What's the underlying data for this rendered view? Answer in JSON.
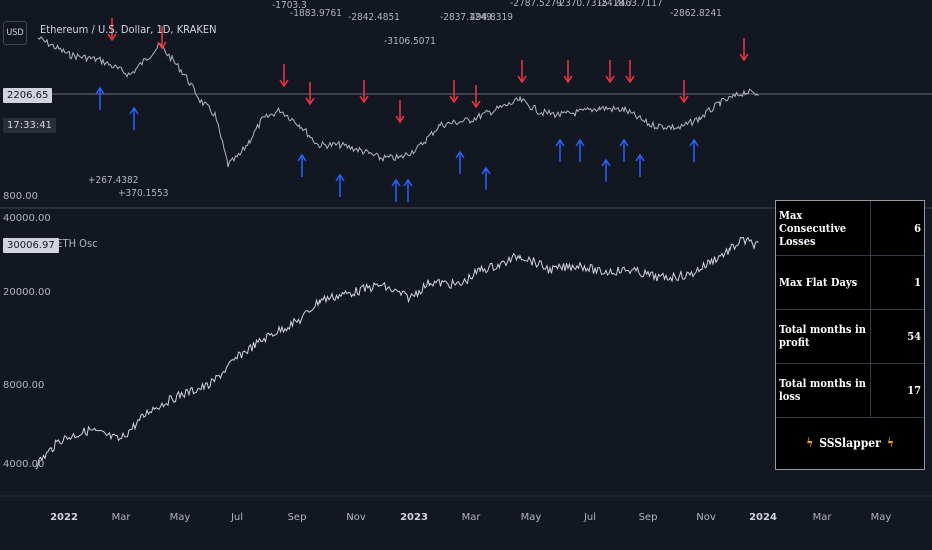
{
  "header": {
    "currency_button": "USD",
    "symbol_title": "Ethereum / U.S. Dollar, 1D, KRAKEN",
    "last_price": "2206.65",
    "countdown": "17:33:41"
  },
  "price_pane": {
    "axis_labels": [
      "800.00"
    ]
  },
  "oscillator": {
    "title": "RS ETH Osc",
    "last_value": "30006.97",
    "axis_labels": [
      "40000.00",
      "20000.00",
      "8000.00",
      "4000.00"
    ]
  },
  "x_axis": {
    "ticks": [
      {
        "label": "2022",
        "bold": true
      },
      {
        "label": "Mar",
        "bold": false
      },
      {
        "label": "May",
        "bold": false
      },
      {
        "label": "Jul",
        "bold": false
      },
      {
        "label": "Sep",
        "bold": false
      },
      {
        "label": "Nov",
        "bold": false
      },
      {
        "label": "2023",
        "bold": true
      },
      {
        "label": "Mar",
        "bold": false
      },
      {
        "label": "May",
        "bold": false
      },
      {
        "label": "Jul",
        "bold": false
      },
      {
        "label": "Sep",
        "bold": false
      },
      {
        "label": "Nov",
        "bold": false
      },
      {
        "label": "2024",
        "bold": true
      },
      {
        "label": "Mar",
        "bold": false
      },
      {
        "label": "May",
        "bold": false
      }
    ]
  },
  "trade_labels": {
    "sell": [
      "-1703.3",
      "-1883.9761",
      "-2842.4851",
      "-3106.5071",
      "-2837.1249",
      "494.8319",
      "-2787.5279",
      "-2370.7315",
      "-2418.7",
      "2463.7117",
      "-2862.8241"
    ],
    "buy": [
      "+267.4382",
      "+370.1553"
    ]
  },
  "stats": {
    "rows": [
      {
        "label": "Max Consecutive Losses",
        "value": "6"
      },
      {
        "label": "Max Flat Days",
        "value": "1"
      },
      {
        "label": "Total months in profit",
        "value": "54"
      },
      {
        "label": "Total months in loss",
        "value": "17"
      }
    ],
    "footer_name": "SSSlapper",
    "footer_icon": "lightning-bolt-icon"
  },
  "colors": {
    "background": "#131722",
    "price_line": "#b2b5be",
    "sell_arrow": "#f23645",
    "buy_arrow": "#2962ff",
    "separator": "#2a2e39"
  }
}
